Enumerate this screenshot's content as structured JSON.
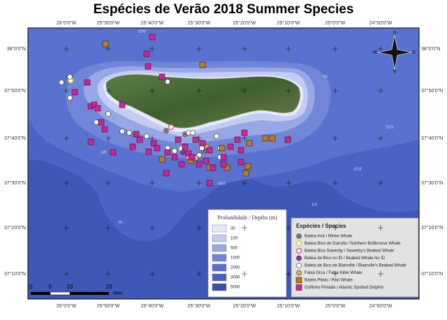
{
  "title": "Espécies de Verão 2018 Summer Species",
  "map": {
    "longitude_labels": [
      "26°0'0\"W",
      "25°50'0\"W",
      "25°40'0\"W",
      "25°30'0\"W",
      "25°20'0\"W",
      "25°10'0\"W",
      "25°0'0\"W",
      "24°50'0\"W"
    ],
    "latitude_labels": [
      "38°0'0\"N",
      "37°50'0\"N",
      "37°40'0\"N",
      "37°30'0\"N",
      "37°20'0\"N",
      "37°10'0\"N"
    ],
    "depth_contour_labels": [
      "1500",
      "65",
      "2223",
      "139",
      "1063",
      "1018",
      "119",
      "94"
    ],
    "compass": [
      "N",
      "E",
      "S",
      "W"
    ],
    "scale_bar": {
      "labels": [
        "0",
        "5",
        "10",
        "20"
      ],
      "unit": "Miles"
    },
    "depth_legend": {
      "title": "Profundidade / Depths (m)",
      "entries": [
        {
          "label": "30",
          "color": "#e6e9fb"
        },
        {
          "label": "100",
          "color": "#c4ccf3"
        },
        {
          "label": "500",
          "color": "#98a7e6"
        },
        {
          "label": "1000",
          "color": "#7285d9"
        },
        {
          "label": "2000",
          "color": "#5a70cf"
        },
        {
          "label": "3000",
          "color": "#4860c2"
        },
        {
          "label": "5000",
          "color": "#3a4fa8"
        }
      ]
    },
    "species_legend": {
      "title": "Espécies / Species",
      "entries": [
        {
          "label": "Baleia Anã / Minke Whale",
          "color": "#9c9c9c"
        },
        {
          "label": "Baleia Bico de Garrafa / Northern Bottlenose Whale",
          "color": "#b8d82a"
        },
        {
          "label": "Baleia Bico Sowerby / Sowerby's Beaked Whale",
          "color": "#e06080"
        },
        {
          "label": "Baleia de Bico no ID / Beaked Whale No ID",
          "color": "#8a2fb0"
        },
        {
          "label": "Baleia de Bico de Blainville / Blainville's Beaked Whale",
          "color": "#ffffff"
        },
        {
          "label": "Falsa Orca / False Killer Whale",
          "color": "#d8b070"
        },
        {
          "label": "Baleia Piloto / Pilot Whale",
          "color": "#c27a18"
        },
        {
          "label": "Golfinho Pintado / Atlantic Spotted Dolphin",
          "color": "#d4209a"
        }
      ]
    }
  }
}
